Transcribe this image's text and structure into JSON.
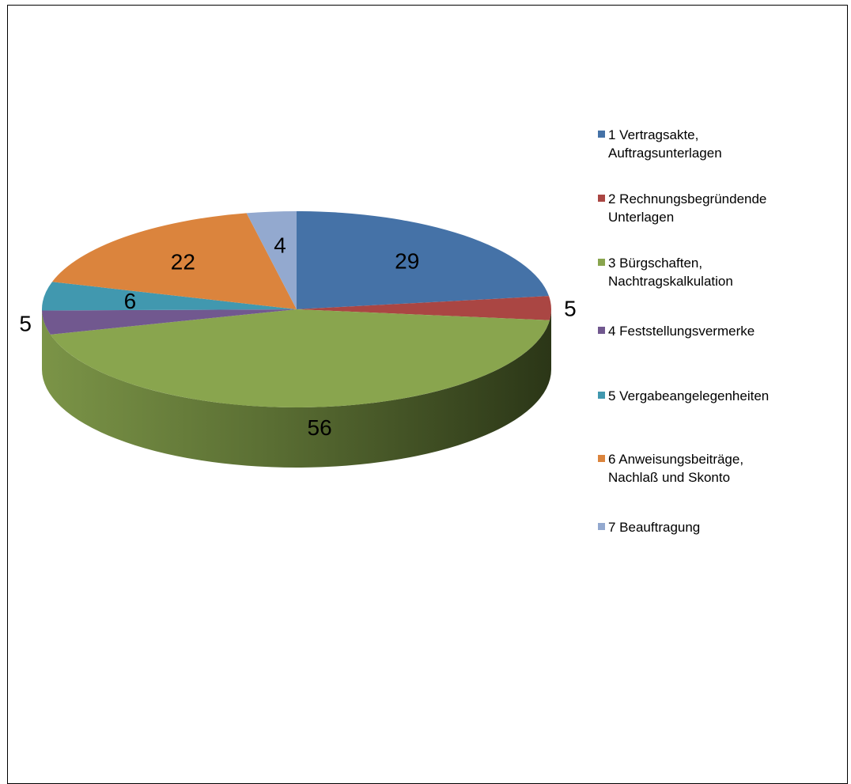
{
  "chart_data": {
    "type": "pie",
    "title": "",
    "three_d": true,
    "legend_position": "right",
    "categories": [
      "1 Vertragsakte, Auftragsunterlagen",
      "2 Rechnungsbegründende Unterlagen",
      "3 Bürgschaften, Nachtragskalkulation",
      "4 Feststellungsvermerke",
      "5 Vergabeangelegenheiten",
      "6 Anweisungsbeiträge, Nachlaß und Skonto",
      "7 Beauftragung"
    ],
    "legend_lines": [
      [
        "1 Vertragsakte,",
        "Auftragsunterlagen"
      ],
      [
        "2 Rechnungsbegründende",
        "Unterlagen"
      ],
      [
        "3 Bürgschaften,",
        "Nachtragskalkulation"
      ],
      [
        "4 Feststellungsvermerke"
      ],
      [
        "5 Vergabeangelegenheiten"
      ],
      [
        "6 Anweisungsbeiträge,",
        "Nachlaß und Skonto"
      ],
      [
        "7 Beauftragung"
      ]
    ],
    "values": [
      29,
      5,
      56,
      5,
      6,
      22,
      4
    ],
    "colors": [
      "#4572a7",
      "#aa4643",
      "#89a54e",
      "#71588f",
      "#4198af",
      "#db843d",
      "#93a9cf"
    ]
  }
}
